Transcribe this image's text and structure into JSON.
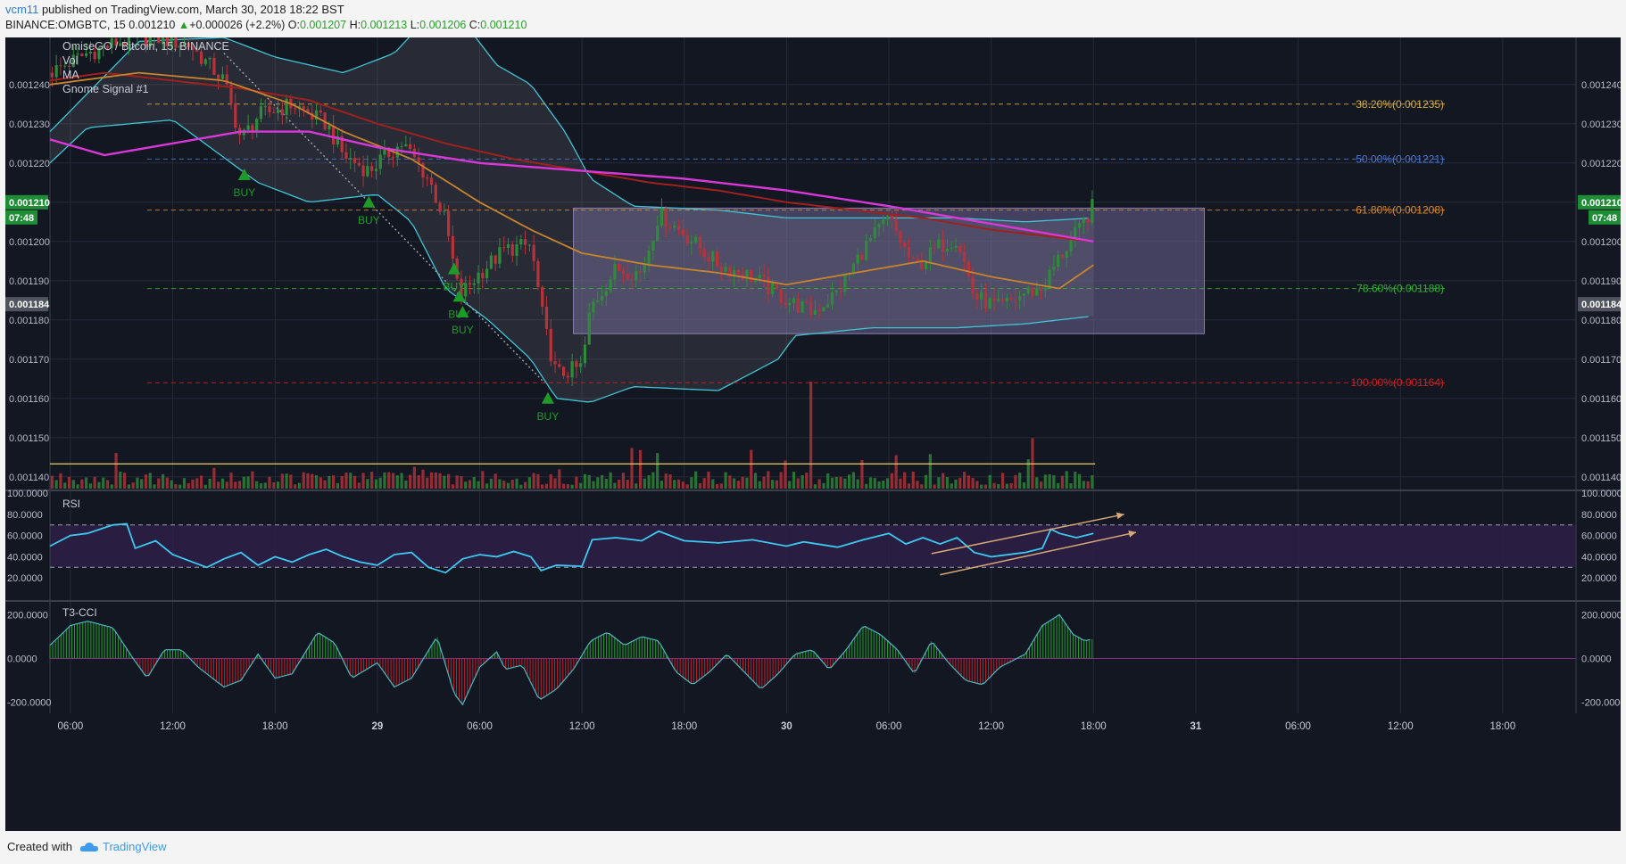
{
  "header": {
    "user": "vcm11",
    "published": "published on TradingView.com, March 30, 2018 18:22 BST",
    "symbol": "BINANCE:OMGBTC, 15",
    "last": "0.001210",
    "change_arrow": "▲",
    "change": "+0.000026 (+2.2%)",
    "o_label": "O:",
    "o": "0.001207",
    "h_label": "H:",
    "h": "0.001213",
    "l_label": "L:",
    "l": "0.001206",
    "c_label": "C:",
    "c": "0.001210"
  },
  "legend": [
    "OmiseGO / Bitcoin, 15, BINANCE",
    "Vol",
    "MA",
    "Gnome Signal #1"
  ],
  "colors": {
    "background": "#131722",
    "up": "#2e8b3a",
    "down": "#b8323a",
    "bollinger": "#3ec6d6",
    "ma_magenta": "#d838d8",
    "ma_red": "#a0201e",
    "ma_orange": "#c8832c",
    "rsi": "#3cc8f0",
    "rsi_band": "#2e2047",
    "box": "#6e6392",
    "fib_382": "#d8b040",
    "fib_500": "#4a78d0",
    "fib_618": "#e08a20",
    "fib_786": "#2fb830",
    "fib_1000": "#d02020",
    "buy": "#1e9a28",
    "price_tag": "#1e8e36"
  },
  "chart_data": {
    "type": "candlestick",
    "symbol": "BINANCE:OMGBTC",
    "interval": "15",
    "price_axis": {
      "ylim": [
        0.001137,
        0.001252
      ],
      "ticks": [
        "0.001240",
        "0.001230",
        "0.001220",
        "0.001210",
        "0.001200",
        "0.001190",
        "0.001180",
        "0.001170",
        "0.001160",
        "0.001150",
        "0.001140"
      ],
      "current_price": "0.001210",
      "countdown": "07:48",
      "marker_price": "0.001184"
    },
    "time_axis": {
      "labels": [
        "06:00",
        "12:00",
        "18:00",
        "29",
        "06:00",
        "12:00",
        "18:00",
        "30",
        "06:00",
        "12:00",
        "18:00",
        "31",
        "06:00",
        "12:00",
        "18:00"
      ],
      "label_hours": [
        6,
        12,
        18,
        24,
        30,
        36,
        42,
        48,
        54,
        60,
        66,
        72,
        78,
        84,
        90
      ],
      "range_hours": [
        4.8,
        94.3
      ],
      "data_end_hour": 66.1
    },
    "fibonacci": [
      {
        "label": "38.20%(0.001235)",
        "price": 0.001235
      },
      {
        "label": "50.00%(0.001221)",
        "price": 0.001221
      },
      {
        "label": "61.80%(0.001208)",
        "price": 0.001208
      },
      {
        "label": "78.60%(0.001188)",
        "price": 0.001188
      },
      {
        "label": "100.00%(0.001164)",
        "price": 0.001164
      }
    ],
    "range_box": {
      "from_hour": 35.5,
      "to_hour": 72.5,
      "top": 0.0012085,
      "bottom": 0.0011765
    },
    "trendline": {
      "from": [
        15.0,
        0.001248
      ],
      "to": [
        33.8,
        0.001164
      ]
    },
    "buy_signals": [
      {
        "label": "BUY",
        "hour": 16.2,
        "price": 0.001217
      },
      {
        "label": "BUY",
        "hour": 23.5,
        "price": 0.00121
      },
      {
        "label": "BUY",
        "hour": 28.5,
        "price": 0.001193
      },
      {
        "label": "BUY",
        "hour": 28.8,
        "price": 0.001186
      },
      {
        "label": "BUY",
        "hour": 29.0,
        "price": 0.001182
      },
      {
        "label": "BUY",
        "hour": 34.0,
        "price": 0.00116
      }
    ],
    "price_path": [
      [
        4.8,
        0.001243
      ],
      [
        7,
        0.001248
      ],
      [
        9,
        0.001251
      ],
      [
        11,
        0.001252
      ],
      [
        13,
        0.00125
      ],
      [
        15,
        0.001241
      ],
      [
        16,
        0.001226
      ],
      [
        17,
        0.001232
      ],
      [
        19,
        0.001235
      ],
      [
        21,
        0.00123
      ],
      [
        22,
        0.001222
      ],
      [
        23.5,
        0.001218
      ],
      [
        24.5,
        0.001222
      ],
      [
        25.5,
        0.001225
      ],
      [
        27,
        0.001216
      ],
      [
        28,
        0.001205
      ],
      [
        28.8,
        0.001186
      ],
      [
        30,
        0.001192
      ],
      [
        31.5,
        0.001198
      ],
      [
        33,
        0.001199
      ],
      [
        33.8,
        0.001178
      ],
      [
        34.5,
        0.001166
      ],
      [
        36,
        0.001168
      ],
      [
        36.5,
        0.001183
      ],
      [
        38,
        0.001193
      ],
      [
        39.5,
        0.001192
      ],
      [
        40.5,
        0.001207
      ],
      [
        42,
        0.001202
      ],
      [
        44,
        0.001194
      ],
      [
        46,
        0.001191
      ],
      [
        48,
        0.001185
      ],
      [
        49.5,
        0.001182
      ],
      [
        51,
        0.001187
      ],
      [
        52.5,
        0.001198
      ],
      [
        54,
        0.001206
      ],
      [
        55.5,
        0.001193
      ],
      [
        57,
        0.001199
      ],
      [
        58,
        0.001201
      ],
      [
        59,
        0.001186
      ],
      [
        60.5,
        0.001183
      ],
      [
        62,
        0.001187
      ],
      [
        63,
        0.001188
      ],
      [
        64,
        0.001196
      ],
      [
        65.2,
        0.001203
      ],
      [
        66.1,
        0.00121
      ]
    ],
    "upper_band": [
      [
        4.8,
        0.001228
      ],
      [
        10,
        0.001251
      ],
      [
        15,
        0.001252
      ],
      [
        18,
        0.001247
      ],
      [
        22,
        0.001243
      ],
      [
        25,
        0.001248
      ],
      [
        28,
        0.001262
      ],
      [
        31,
        0.001245
      ],
      [
        33,
        0.00124
      ],
      [
        35,
        0.001228
      ],
      [
        36.5,
        0.001216
      ],
      [
        39,
        0.001209
      ],
      [
        44,
        0.001208
      ],
      [
        48,
        0.001206
      ],
      [
        53,
        0.001206
      ],
      [
        58,
        0.001206
      ],
      [
        62,
        0.001205
      ],
      [
        66,
        0.001206
      ]
    ],
    "lower_band": [
      [
        4.8,
        0.00122
      ],
      [
        7,
        0.001229
      ],
      [
        12,
        0.001231
      ],
      [
        17,
        0.001215
      ],
      [
        20,
        0.00121
      ],
      [
        24,
        0.001212
      ],
      [
        26,
        0.001205
      ],
      [
        28,
        0.001188
      ],
      [
        30.5,
        0.00118
      ],
      [
        33,
        0.00117
      ],
      [
        34.5,
        0.00116
      ],
      [
        36.5,
        0.001159
      ],
      [
        39,
        0.001163
      ],
      [
        44,
        0.001162
      ],
      [
        47.5,
        0.00117
      ],
      [
        48.5,
        0.001176
      ],
      [
        53,
        0.001178
      ],
      [
        58,
        0.001178
      ],
      [
        62,
        0.001179
      ],
      [
        66,
        0.001181
      ]
    ],
    "ma_magenta": [
      [
        4.8,
        0.001226
      ],
      [
        8,
        0.001222
      ],
      [
        12,
        0.001225
      ],
      [
        16,
        0.001228
      ],
      [
        20,
        0.001228
      ],
      [
        24,
        0.001224
      ],
      [
        30,
        0.00122
      ],
      [
        36,
        0.001218
      ],
      [
        42,
        0.001216
      ],
      [
        48,
        0.001213
      ],
      [
        54,
        0.001209
      ],
      [
        58,
        0.001206
      ],
      [
        62,
        0.001203
      ],
      [
        66,
        0.0012
      ]
    ],
    "ma_red": [
      [
        4.8,
        0.001241
      ],
      [
        8,
        0.001243
      ],
      [
        12,
        0.001241
      ],
      [
        16,
        0.001239
      ],
      [
        20,
        0.001236
      ],
      [
        24,
        0.00123
      ],
      [
        28,
        0.001225
      ],
      [
        32,
        0.001221
      ],
      [
        36,
        0.001218
      ],
      [
        40,
        0.001215
      ],
      [
        44,
        0.001213
      ],
      [
        48,
        0.00121
      ],
      [
        52,
        0.001208
      ],
      [
        56,
        0.001206
      ],
      [
        60,
        0.001203
      ],
      [
        64,
        0.001201
      ],
      [
        66,
        0.0012
      ]
    ],
    "ma_orange": [
      [
        4.8,
        0.00124
      ],
      [
        10,
        0.001243
      ],
      [
        15,
        0.001241
      ],
      [
        19,
        0.001235
      ],
      [
        22,
        0.001228
      ],
      [
        26,
        0.001221
      ],
      [
        30,
        0.00121
      ],
      [
        33,
        0.001203
      ],
      [
        36,
        0.001197
      ],
      [
        40,
        0.001194
      ],
      [
        44,
        0.001192
      ],
      [
        48,
        0.001189
      ],
      [
        52,
        0.001192
      ],
      [
        56,
        0.001195
      ],
      [
        60,
        0.001191
      ],
      [
        64,
        0.001188
      ],
      [
        66,
        0.001194
      ]
    ],
    "volume_ma_level": 0.0011433,
    "rsi": {
      "label": "RSI",
      "ticks": [
        "100.0000",
        "80.0000",
        "60.0000",
        "40.0000",
        "20.0000"
      ],
      "ylim": [
        0,
        100
      ],
      "levels": [
        70,
        30
      ],
      "path": [
        [
          4.8,
          50
        ],
        [
          6,
          60
        ],
        [
          7,
          62
        ],
        [
          8.5,
          70
        ],
        [
          9.3,
          71
        ],
        [
          9.8,
          48
        ],
        [
          11,
          55
        ],
        [
          12,
          42
        ],
        [
          13,
          36
        ],
        [
          14,
          30
        ],
        [
          15,
          38
        ],
        [
          16,
          44
        ],
        [
          17,
          32
        ],
        [
          18,
          40
        ],
        [
          19,
          35
        ],
        [
          20,
          42
        ],
        [
          21,
          47
        ],
        [
          22,
          40
        ],
        [
          23,
          35
        ],
        [
          24,
          32
        ],
        [
          25,
          42
        ],
        [
          26,
          44
        ],
        [
          27,
          30
        ],
        [
          28,
          25
        ],
        [
          29,
          38
        ],
        [
          30,
          42
        ],
        [
          31,
          40
        ],
        [
          32,
          45
        ],
        [
          33,
          40
        ],
        [
          33.6,
          27
        ],
        [
          34.5,
          32
        ],
        [
          36,
          31
        ],
        [
          36.6,
          56
        ],
        [
          38,
          58
        ],
        [
          39.5,
          55
        ],
        [
          40.5,
          64
        ],
        [
          42,
          55
        ],
        [
          44,
          53
        ],
        [
          46,
          56
        ],
        [
          48,
          50
        ],
        [
          49,
          54
        ],
        [
          51,
          49
        ],
        [
          52.5,
          56
        ],
        [
          54,
          62
        ],
        [
          55,
          52
        ],
        [
          56,
          58
        ],
        [
          57,
          52
        ],
        [
          58,
          58
        ],
        [
          59,
          44
        ],
        [
          60,
          40
        ],
        [
          62,
          44
        ],
        [
          63,
          48
        ],
        [
          63.5,
          66
        ],
        [
          64,
          62
        ],
        [
          65,
          58
        ],
        [
          66,
          62
        ]
      ],
      "trend_lines": [
        {
          "from": [
            56.5,
            43
          ],
          "to": [
            67.8,
            80
          ]
        },
        {
          "from": [
            57,
            23
          ],
          "to": [
            68.5,
            63
          ]
        }
      ]
    },
    "t3_cci": {
      "label": "T3-CCI",
      "ticks": [
        "200.0000",
        "0.0000",
        "-200.0000"
      ],
      "ylim": [
        -250,
        250
      ],
      "path": [
        [
          4.8,
          60
        ],
        [
          6,
          150
        ],
        [
          7,
          170
        ],
        [
          8.5,
          140
        ],
        [
          9.5,
          20
        ],
        [
          10.5,
          -90
        ],
        [
          11.5,
          40
        ],
        [
          12.5,
          40
        ],
        [
          13.5,
          -40
        ],
        [
          15,
          -130
        ],
        [
          16,
          -100
        ],
        [
          17,
          20
        ],
        [
          18,
          -90
        ],
        [
          19,
          -70
        ],
        [
          20.5,
          120
        ],
        [
          21.5,
          70
        ],
        [
          22.5,
          -90
        ],
        [
          24,
          -20
        ],
        [
          25,
          -130
        ],
        [
          26,
          -90
        ],
        [
          27.5,
          100
        ],
        [
          28.5,
          -160
        ],
        [
          29,
          -210
        ],
        [
          30,
          -40
        ],
        [
          31,
          30
        ],
        [
          31.5,
          -50
        ],
        [
          32.5,
          -30
        ],
        [
          33.5,
          -190
        ],
        [
          34.5,
          -140
        ],
        [
          35.5,
          -50
        ],
        [
          36.5,
          80
        ],
        [
          37.5,
          120
        ],
        [
          38.5,
          60
        ],
        [
          39.5,
          100
        ],
        [
          40.5,
          80
        ],
        [
          41.5,
          -60
        ],
        [
          42.5,
          -120
        ],
        [
          43.5,
          -60
        ],
        [
          44.5,
          20
        ],
        [
          45.5,
          -60
        ],
        [
          46.5,
          -140
        ],
        [
          47.5,
          -70
        ],
        [
          48.5,
          20
        ],
        [
          49.5,
          40
        ],
        [
          50.5,
          -50
        ],
        [
          51.5,
          40
        ],
        [
          52.5,
          150
        ],
        [
          53.5,
          110
        ],
        [
          54.5,
          40
        ],
        [
          55.5,
          -70
        ],
        [
          56.5,
          80
        ],
        [
          57.5,
          -20
        ],
        [
          58.5,
          -100
        ],
        [
          59.5,
          -120
        ],
        [
          60.5,
          -40
        ],
        [
          62,
          20
        ],
        [
          63,
          150
        ],
        [
          64,
          200
        ],
        [
          64.8,
          110
        ],
        [
          65.5,
          80
        ],
        [
          66,
          90
        ]
      ]
    }
  },
  "footer": {
    "created": "Created with",
    "brand": "TradingView"
  }
}
